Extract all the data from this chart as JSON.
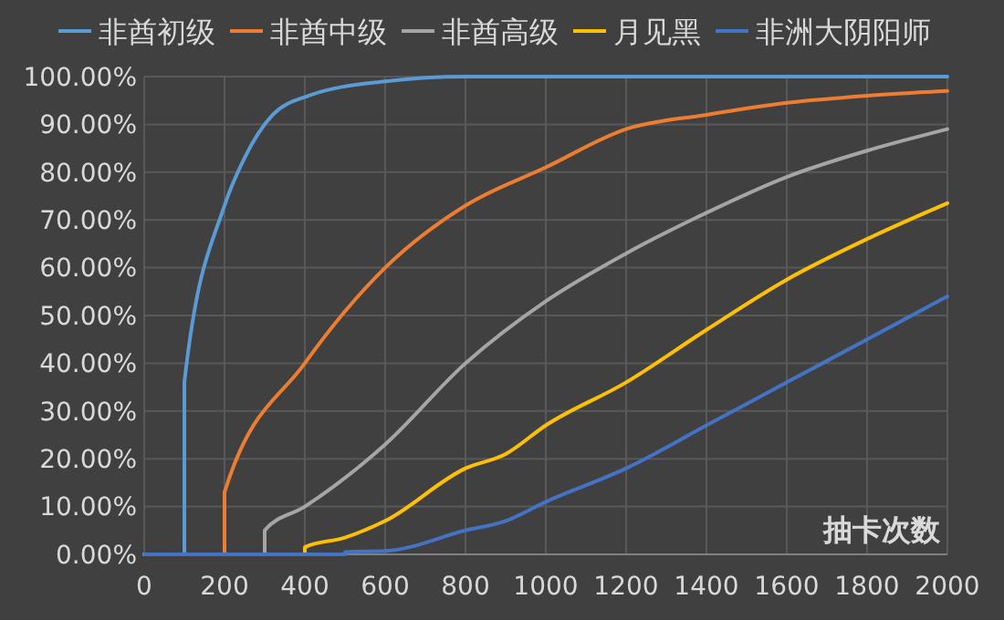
{
  "chart_data": {
    "type": "line",
    "xlabel": "抽卡次数",
    "legend": "top",
    "grid": true,
    "marker": "none",
    "line_style": "solid",
    "xlim": [
      0,
      2000
    ],
    "xticks": [
      0,
      200,
      400,
      600,
      800,
      1000,
      1200,
      1400,
      1600,
      1800,
      2000
    ],
    "ylim": [
      0,
      100
    ],
    "yticks": [
      {
        "value": 0,
        "label": "0.00%"
      },
      {
        "value": 10,
        "label": "10.00%"
      },
      {
        "value": 20,
        "label": "20.00%"
      },
      {
        "value": 30,
        "label": "30.00%"
      },
      {
        "value": 40,
        "label": "40.00%"
      },
      {
        "value": 50,
        "label": "50.00%"
      },
      {
        "value": 60,
        "label": "60.00%"
      },
      {
        "value": 70,
        "label": "70.00%"
      },
      {
        "value": 80,
        "label": "80.00%"
      },
      {
        "value": 90,
        "label": "90.00%"
      },
      {
        "value": 100,
        "label": "100.00%"
      }
    ],
    "series": [
      {
        "name": "非酋初级",
        "color": "#5b9bd5",
        "x": [
          0,
          100,
          100,
          200,
          250,
          320,
          410,
          600,
          800,
          1000,
          1500,
          2000
        ],
        "values": [
          0,
          0,
          36,
          73,
          83,
          92,
          96,
          99,
          100,
          100,
          100,
          100
        ]
      },
      {
        "name": "非酋中级",
        "color": "#ed7d31",
        "x": [
          0,
          200,
          200,
          400,
          600,
          800,
          1000,
          1200,
          1400,
          1600,
          1800,
          2000
        ],
        "values": [
          0,
          0,
          13,
          40,
          60,
          73,
          81,
          89,
          92,
          94.5,
          96,
          97
        ]
      },
      {
        "name": "非酋高级",
        "color": "#a5a5a5",
        "x": [
          0,
          300,
          300,
          400,
          600,
          800,
          1000,
          1200,
          1400,
          1600,
          1800,
          2000
        ],
        "values": [
          0,
          0,
          5,
          10,
          23,
          40,
          53,
          63,
          71.5,
          79,
          84.5,
          89
        ]
      },
      {
        "name": "月见黑",
        "color": "#ffc000",
        "x": [
          0,
          400,
          400,
          500,
          600,
          800,
          900,
          1000,
          1200,
          1400,
          1600,
          1800,
          2000
        ],
        "values": [
          0,
          0,
          1.5,
          3.5,
          7,
          18,
          21,
          27,
          36,
          47,
          57.5,
          66,
          73.5
        ]
      },
      {
        "name": "非洲大阴阳师",
        "color": "#4472c4",
        "x": [
          0,
          500,
          500,
          600,
          800,
          900,
          1000,
          1200,
          1400,
          1600,
          1800,
          2000
        ],
        "values": [
          0,
          0,
          0.5,
          0.7,
          5,
          7,
          11,
          18,
          27,
          36,
          45,
          54
        ]
      }
    ]
  }
}
